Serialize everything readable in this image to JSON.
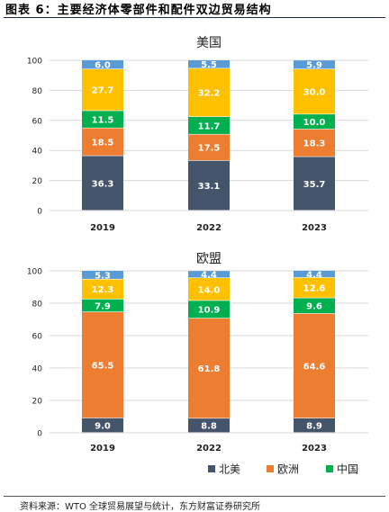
{
  "figure_title": "图表 6：主要经济体零部件和配件双边贸易结构",
  "source": "资料来源：WTO 全球贸易展望与统计，东方财富证券研究所",
  "colors": {
    "北美": "#44546a",
    "欧洲": "#ed7d31",
    "中国": "#00b050",
    "其他": "#ffc000",
    "剩余": "#5b9bd5",
    "grid": "#d9d9d9",
    "label_light": "#ffffff",
    "label_dark": "#ffffff"
  },
  "legend": [
    {
      "name": "北美",
      "color_key": "北美"
    },
    {
      "name": "欧洲",
      "color_key": "欧洲"
    },
    {
      "name": "中国",
      "color_key": "中国"
    }
  ],
  "chart_data": [
    {
      "type": "bar",
      "stacked": true,
      "title": "美国",
      "categories": [
        "2019",
        "2022",
        "2023"
      ],
      "ylim": [
        0,
        100
      ],
      "yticks": [
        0,
        20,
        40,
        60,
        80,
        100
      ],
      "grid": true,
      "series": [
        {
          "name": "北美",
          "color_key": "北美",
          "values": [
            36.3,
            33.1,
            35.7
          ]
        },
        {
          "name": "欧洲",
          "color_key": "欧洲",
          "values": [
            18.5,
            17.5,
            18.3
          ]
        },
        {
          "name": "中国",
          "color_key": "中国",
          "values": [
            11.5,
            11.7,
            10.0
          ]
        },
        {
          "color_key": "其他",
          "values": [
            27.7,
            32.2,
            30.0
          ]
        },
        {
          "color_key": "剩余",
          "values": [
            6.0,
            5.5,
            5.9
          ]
        }
      ]
    },
    {
      "type": "bar",
      "stacked": true,
      "title": "欧盟",
      "categories": [
        "2019",
        "2022",
        "2023"
      ],
      "ylim": [
        0,
        100
      ],
      "yticks": [
        0,
        20,
        40,
        60,
        80,
        100
      ],
      "grid": true,
      "series": [
        {
          "name": "北美",
          "color_key": "北美",
          "values": [
            9.0,
            8.8,
            8.9
          ]
        },
        {
          "name": "欧洲",
          "color_key": "欧洲",
          "values": [
            65.5,
            61.8,
            64.6
          ]
        },
        {
          "name": "中国",
          "color_key": "中国",
          "values": [
            7.9,
            10.9,
            9.6
          ]
        },
        {
          "color_key": "其他",
          "values": [
            12.3,
            14.0,
            12.6
          ]
        },
        {
          "color_key": "剩余",
          "values": [
            5.3,
            4.4,
            4.4
          ]
        }
      ]
    }
  ]
}
